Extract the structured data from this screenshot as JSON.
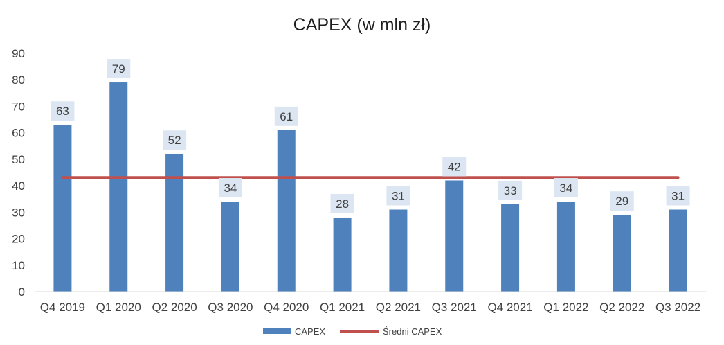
{
  "chart_data": {
    "type": "bar",
    "title": "CAPEX (w mln zł)",
    "xlabel": "",
    "ylabel": "",
    "categories": [
      "Q4 2019",
      "Q1 2020",
      "Q2 2020",
      "Q3 2020",
      "Q4 2020",
      "Q1 2021",
      "Q2 2021",
      "Q3 2021",
      "Q4 2021",
      "Q1 2022",
      "Q2 2022",
      "Q3 2022"
    ],
    "series": [
      {
        "name": "CAPEX",
        "type": "bar",
        "color": "#4f81bd",
        "values": [
          63,
          79,
          52,
          34,
          61,
          28,
          31,
          42,
          33,
          34,
          29,
          31
        ],
        "labels": [
          "63",
          "79",
          "52",
          "34",
          "61",
          "28",
          "31",
          "42",
          "33",
          "34",
          "29",
          "31"
        ]
      },
      {
        "name": "Średni CAPEX",
        "type": "line",
        "color": "#c0504d",
        "values": [
          43.1,
          43.1,
          43.1,
          43.1,
          43.1,
          43.1,
          43.1,
          43.1,
          43.1,
          43.1,
          43.1,
          43.1
        ]
      }
    ],
    "ylim": [
      0,
      90
    ],
    "yticks": [
      "0",
      "10",
      "20",
      "30",
      "40",
      "50",
      "60",
      "70",
      "80",
      "90"
    ],
    "grid": false,
    "legend_position": "bottom",
    "data_label_bg": "#dce6f2"
  }
}
